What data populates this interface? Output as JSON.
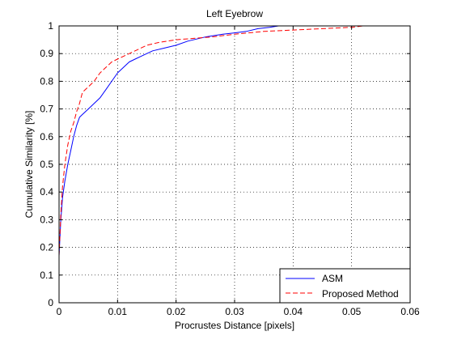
{
  "chart_data": {
    "type": "line",
    "title": "Left Eyebrow",
    "xlabel": "Procrustes Distance [pixels]",
    "ylabel": "Cumulative Similarity [%]",
    "xlim": [
      0,
      0.06
    ],
    "ylim": [
      0,
      1
    ],
    "x_ticks": [
      "0",
      "0.01",
      "0.02",
      "0.03",
      "0.04",
      "0.05",
      "0.06"
    ],
    "y_ticks": [
      "0",
      "0.1",
      "0.2",
      "0.3",
      "0.4",
      "0.5",
      "0.6",
      "0.7",
      "0.8",
      "0.9",
      "1"
    ],
    "grid": true,
    "legend_position": "bottom-right",
    "series": [
      {
        "name": "ASM",
        "color": "#0000ff",
        "style": "solid",
        "x": [
          0,
          0.0003,
          0.0006,
          0.001,
          0.0015,
          0.002,
          0.0025,
          0.003,
          0.0035,
          0.004,
          0.005,
          0.006,
          0.007,
          0.008,
          0.009,
          0.01,
          0.011,
          0.012,
          0.013,
          0.014,
          0.015,
          0.016,
          0.018,
          0.02,
          0.022,
          0.025,
          0.028,
          0.03,
          0.032,
          0.034,
          0.036,
          0.0375
        ],
        "y": [
          0.17,
          0.3,
          0.38,
          0.44,
          0.5,
          0.55,
          0.6,
          0.64,
          0.67,
          0.68,
          0.7,
          0.72,
          0.74,
          0.77,
          0.8,
          0.83,
          0.85,
          0.87,
          0.88,
          0.89,
          0.9,
          0.91,
          0.92,
          0.93,
          0.945,
          0.96,
          0.97,
          0.975,
          0.98,
          0.99,
          0.995,
          1.0
        ]
      },
      {
        "name": "Proposed Method",
        "color": "#ff0000",
        "style": "dashed",
        "x": [
          0,
          0.0003,
          0.0006,
          0.001,
          0.0015,
          0.002,
          0.0025,
          0.003,
          0.0035,
          0.004,
          0.005,
          0.006,
          0.007,
          0.008,
          0.009,
          0.01,
          0.011,
          0.012,
          0.013,
          0.015,
          0.017,
          0.02,
          0.023,
          0.026,
          0.03,
          0.035,
          0.04,
          0.045,
          0.05,
          0.052
        ],
        "y": [
          0.17,
          0.32,
          0.42,
          0.5,
          0.57,
          0.62,
          0.65,
          0.69,
          0.72,
          0.76,
          0.78,
          0.8,
          0.83,
          0.85,
          0.87,
          0.88,
          0.89,
          0.9,
          0.91,
          0.93,
          0.94,
          0.95,
          0.955,
          0.96,
          0.97,
          0.98,
          0.985,
          0.99,
          0.995,
          1.0
        ]
      }
    ]
  }
}
